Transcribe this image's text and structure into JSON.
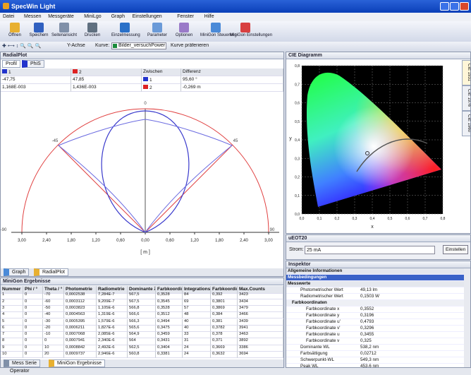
{
  "window": {
    "title": "SpecWin Light"
  },
  "menu": [
    "Datei",
    "Messen",
    "Messgeräte",
    "MiniLgo",
    "Graph",
    "Einstellungen",
    "Fenster",
    "Hilfe"
  ],
  "toolbar": [
    "Öffnen",
    "Speichern",
    "Seitenansicht",
    "Drucken",
    "Einzelmessung",
    "Parameter",
    "Optionen",
    "MiniGon Steuerung",
    "MiniGon Einstellungen"
  ],
  "toolbar2": {
    "y_axis": "Y-Achse",
    "curve_label": "Kurve:",
    "curve_value": "Bilder_versuchPower 250",
    "prefer": "Kurve präferieren"
  },
  "radial_panel": {
    "title": "RadialPlot",
    "tab": "Profil",
    "tab2": "PhiS",
    "table": {
      "header": [
        "1",
        "2",
        "Zwischen",
        "Differenz"
      ],
      "rows": [
        [
          "-47,75",
          "47,85",
          "1",
          "95,60 °"
        ],
        [
          "1,168E-003",
          "1,436E-003",
          "2",
          "-0,269 m"
        ]
      ]
    },
    "angle_labels": [
      "-90",
      "-45",
      "0",
      "45",
      "90"
    ],
    "axis_labels": [
      "3,00",
      "2,40",
      "1,80",
      "1,20",
      "0,60",
      "0,00",
      "0,60",
      "1,20",
      "1,80",
      "2,40",
      "3,00"
    ],
    "unit": "[ m ]",
    "tabs": [
      "Graph",
      "RadialPlot"
    ]
  },
  "results_panel": {
    "title": "MiniGon Ergebnisse",
    "header": [
      "Nummer",
      "Phi / °",
      "Theta / °",
      "Photometrie",
      "Radiometrie",
      "Dominante λ",
      "Farbkoordin.",
      "Integrationsz.",
      "Farbkoordin.",
      "Max.Counts"
    ],
    "rows": [
      [
        "1",
        "0",
        "-70",
        "0,0002538",
        "7,284E-7",
        "567,5",
        "0,3528",
        "84",
        "0,392",
        "3423"
      ],
      [
        "2",
        "0",
        "-60",
        "0,0003112",
        "9,209E-7",
        "567,5",
        "0,3545",
        "69",
        "0,3801",
        "3434"
      ],
      [
        "3",
        "0",
        "-50",
        "0,0003823",
        "1,105E-6",
        "566,8",
        "0,3528",
        "57",
        "0,3869",
        "3479"
      ],
      [
        "4",
        "0",
        "-40",
        "0,0004563",
        "1,319E-6",
        "566,6",
        "0,3512",
        "48",
        "0,384",
        "3466"
      ],
      [
        "5",
        "0",
        "-30",
        "0,0005395",
        "1,579E-6",
        "566,3",
        "0,3494",
        "40",
        "0,381",
        "3439"
      ],
      [
        "6",
        "0",
        "-20",
        "0,0006211",
        "1,827E-6",
        "565,6",
        "0,3475",
        "40",
        "0,3782",
        "3941"
      ],
      [
        "7",
        "0",
        "-10",
        "0,0007068",
        "2,085E-6",
        "564,9",
        "0,3459",
        "33",
        "0,378",
        "3463"
      ],
      [
        "8",
        "0",
        "0",
        "0,0007941",
        "2,340E-6",
        "564",
        "0,3431",
        "31",
        "0,371",
        "3892"
      ],
      [
        "9",
        "0",
        "10",
        "0,0008842",
        "2,492E-6",
        "562,5",
        "0,3404",
        "24",
        "0,3669",
        "3386"
      ],
      [
        "10",
        "0",
        "20",
        "0,0009737",
        "2,946E-6",
        "560,8",
        "0,3381",
        "24",
        "0,3632",
        "3694"
      ]
    ],
    "tabs": [
      "Mess Serie",
      "MiniGon Ergebnisse"
    ]
  },
  "cie_panel": {
    "title": "CIE Diagramm",
    "xticks": [
      "0,0",
      "0,1",
      "0,2",
      "0,3",
      "0,4",
      "0,5",
      "0,6",
      "0,7",
      "0,8"
    ],
    "yticks": [
      "0,0",
      "0,1",
      "0,2",
      "0,3",
      "0,4",
      "0,5",
      "0,6",
      "0,7",
      "0,8"
    ],
    "xlabel": "x",
    "ylabel": "y",
    "side_tabs": [
      "CIE 1931",
      "CIE 1976",
      "CIE 1960"
    ]
  },
  "source_panel": {
    "title": "uEOT20",
    "label": "Strom:",
    "value": "25 mA",
    "button": "Einstellen"
  },
  "inspector": {
    "title": "Inspektor",
    "general": "Allgemeine Informationen",
    "conditions": "Messbedingungen",
    "measured": {
      "title": "Messwerte",
      "rows": [
        [
          "Photometrischer Wert",
          "49,13 lm"
        ],
        [
          "Radiometrischer Wert",
          "0,1503 W"
        ]
      ]
    },
    "color": {
      "title": "Farbkoordinaten",
      "rows": [
        [
          "Farbkoordinate x",
          "0,3552"
        ],
        [
          "Farbkoordinate y",
          "0,3196"
        ],
        [
          "Farbkoordinate u'",
          "0,4793"
        ],
        [
          "Farbkoordinate v'",
          "0,3296"
        ],
        [
          "Farbkoordinate u",
          "0,3455"
        ],
        [
          "Farbkoordinate v",
          "0,325"
        ]
      ]
    },
    "more_rows": [
      [
        "Dominante WL",
        "538,2 nm"
      ],
      [
        "Farbsättigung",
        "0,02712"
      ],
      [
        "Schwerpunkt-WL",
        "549,3 nm"
      ],
      [
        "Peak WL",
        "453,6 nm"
      ]
    ]
  },
  "status": {
    "operator": "Operator"
  }
}
